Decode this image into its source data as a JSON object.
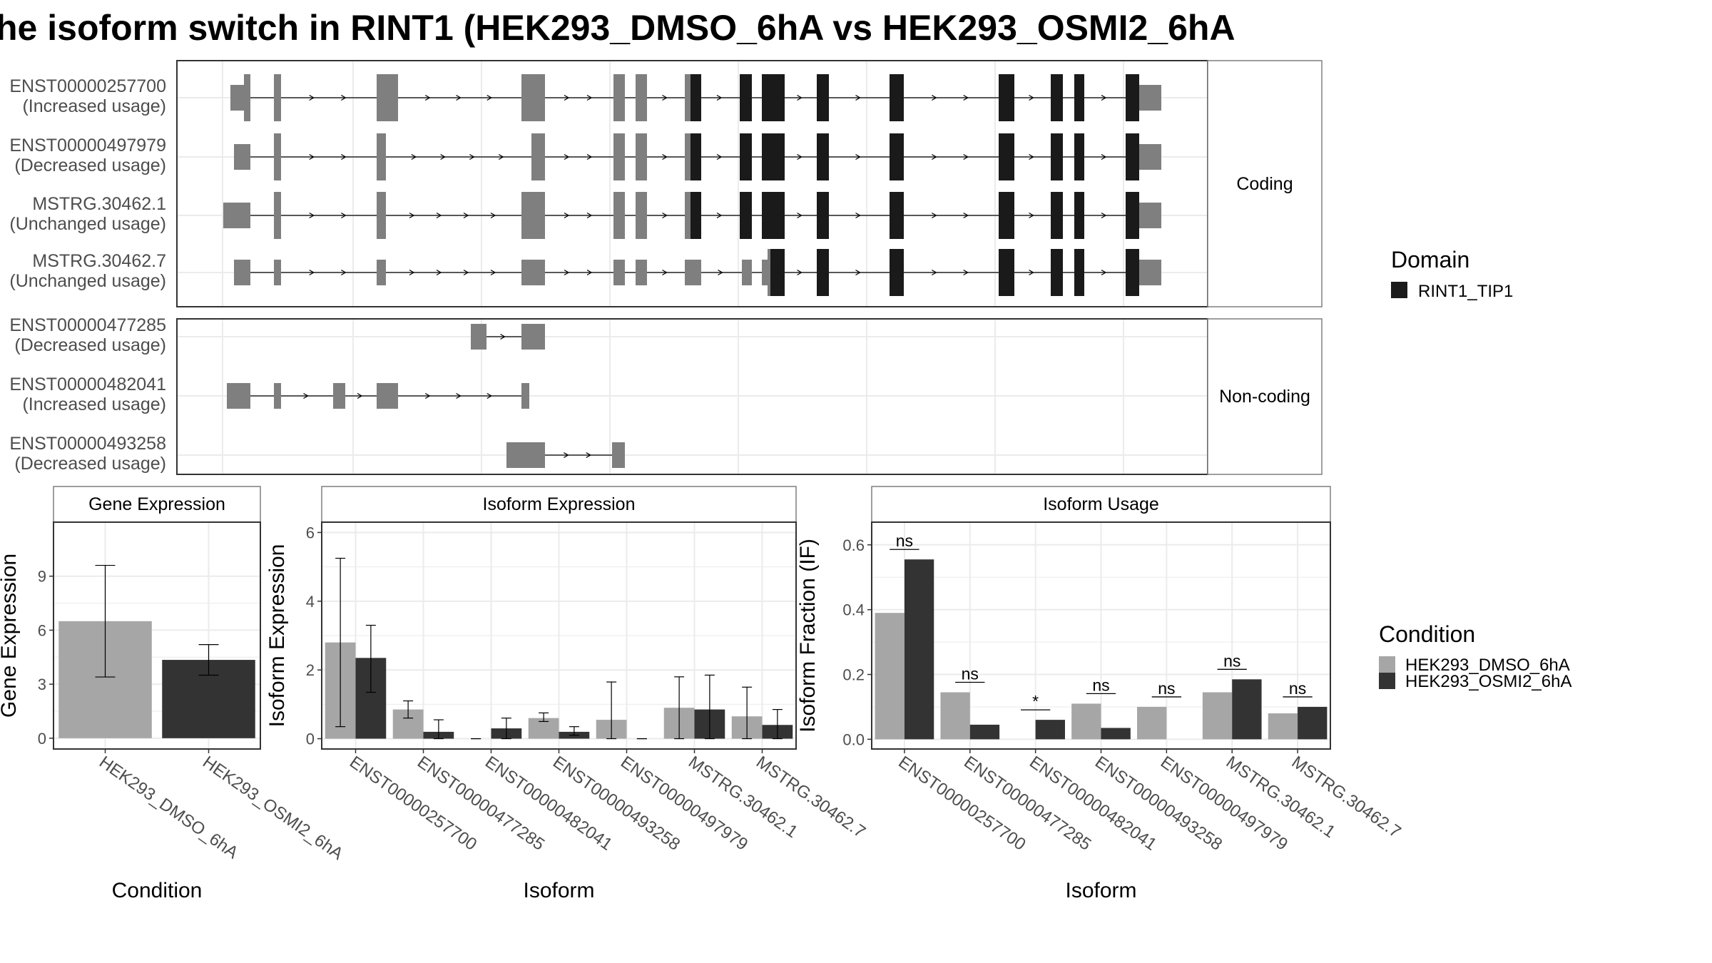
{
  "title": "he isoform switch in RINT1 (HEK293_DMSO_6hA vs HEK293_OSMI2_6hA",
  "colors": {
    "dmso": "#a6a6a6",
    "osmi2": "#333333",
    "utr": "#7f7f7f",
    "domain": "#1a1a1a",
    "grid": "#ebebeb",
    "panel_border": "#333333",
    "strip_border": "#7f7f7f"
  },
  "structure": {
    "coding_label": "Coding",
    "noncoding_label": "Non-coding",
    "domain_legend": {
      "title": "Domain",
      "entries": [
        "RINT1_TIP1"
      ]
    },
    "coding": [
      {
        "id": "ENST00000257700",
        "usage": "(Increased usage)"
      },
      {
        "id": "ENST00000497979",
        "usage": "(Decreased usage)"
      },
      {
        "id": "MSTRG.30462.1",
        "usage": "(Unchanged usage)"
      },
      {
        "id": "MSTRG.30462.7",
        "usage": "(Unchanged usage)"
      }
    ],
    "noncoding": [
      {
        "id": "ENST00000477285",
        "usage": "(Decreased usage)"
      },
      {
        "id": "ENST00000482041",
        "usage": "(Increased usage)"
      },
      {
        "id": "ENST00000493258",
        "usage": "(Decreased usage)"
      }
    ]
  },
  "chart_data": [
    {
      "type": "bar",
      "title": "Gene Expression",
      "xlabel": "Condition",
      "ylabel": "Gene Expression",
      "categories": [
        "HEK293_DMSO_6hA",
        "HEK293_OSMI2_6hA"
      ],
      "values": [
        6.5,
        4.35
      ],
      "error_low": [
        3.4,
        3.5
      ],
      "error_high": [
        9.6,
        5.2
      ],
      "ylim": [
        -0.6,
        12
      ],
      "yticks": [
        0,
        3,
        6,
        9
      ]
    },
    {
      "type": "bar",
      "title": "Isoform Expression",
      "xlabel": "Isoform",
      "ylabel": "Isoform Expression",
      "categories": [
        "ENST00000257700",
        "ENST00000477285",
        "ENST00000482041",
        "ENST00000493258",
        "ENST00000497979",
        "MSTRG.30462.1",
        "MSTRG.30462.7"
      ],
      "series": [
        {
          "name": "HEK293_DMSO_6hA",
          "values": [
            2.8,
            0.85,
            0.0,
            0.6,
            0.55,
            0.9,
            0.65
          ],
          "error_low": [
            0.35,
            0.6,
            0.0,
            0.5,
            0.0,
            0.0,
            0.0
          ],
          "error_high": [
            5.25,
            1.1,
            0.0,
            0.75,
            1.65,
            1.8,
            1.5
          ]
        },
        {
          "name": "HEK293_OSMI2_6hA",
          "values": [
            2.35,
            0.2,
            0.3,
            0.2,
            0.0,
            0.85,
            0.4
          ],
          "error_low": [
            1.35,
            0.0,
            0.0,
            0.1,
            0.0,
            0.0,
            0.0
          ],
          "error_high": [
            3.3,
            0.55,
            0.6,
            0.35,
            0.0,
            1.85,
            0.85
          ]
        }
      ],
      "ylim": [
        -0.3,
        6.3
      ],
      "yticks": [
        0,
        2,
        4,
        6
      ]
    },
    {
      "type": "bar",
      "title": "Isoform Usage",
      "xlabel": "Isoform",
      "ylabel": "Isoform Fraction (IF)",
      "categories": [
        "ENST00000257700",
        "ENST00000477285",
        "ENST00000482041",
        "ENST00000493258",
        "ENST00000497979",
        "MSTRG.30462.1",
        "MSTRG.30462.7"
      ],
      "series": [
        {
          "name": "HEK293_DMSO_6hA",
          "values": [
            0.39,
            0.145,
            0.0,
            0.11,
            0.1,
            0.145,
            0.08
          ]
        },
        {
          "name": "HEK293_OSMI2_6hA",
          "values": [
            0.555,
            0.045,
            0.06,
            0.035,
            0.0,
            0.185,
            0.1
          ]
        }
      ],
      "significance": [
        "ns",
        "ns",
        "*",
        "ns",
        "ns",
        "ns",
        "ns"
      ],
      "ylim": [
        -0.03,
        0.67
      ],
      "yticks": [
        0.0,
        0.2,
        0.4,
        0.6
      ],
      "yticklabels": [
        "0.0",
        "0.2",
        "0.4",
        "0.6"
      ]
    }
  ],
  "condition_legend": {
    "title": "Condition",
    "entries": [
      "HEK293_DMSO_6hA",
      "HEK293_OSMI2_6hA"
    ]
  }
}
